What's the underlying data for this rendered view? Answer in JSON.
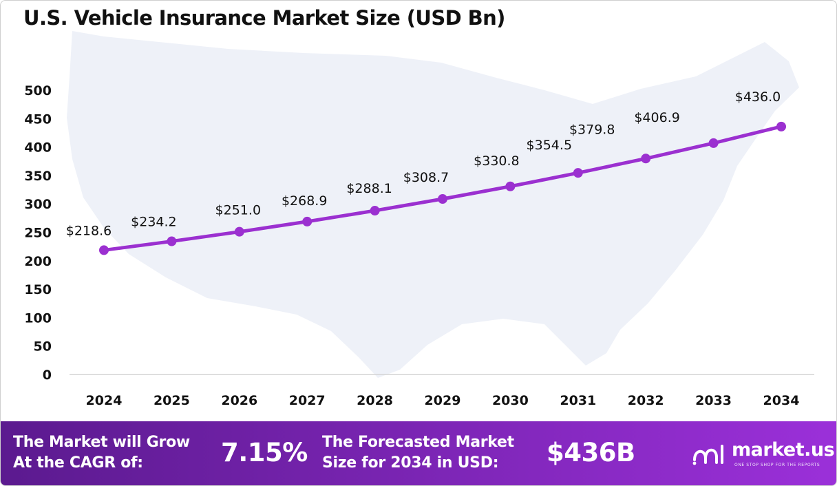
{
  "title": "U.S. Vehicle Insurance Market Size (USD Bn)",
  "colors": {
    "line": "#9b30d0",
    "marker": "#9b30d0",
    "map": "#eef1f8",
    "footer_start": "#5b1a8f",
    "footer_end": "#9b30d9"
  },
  "chart_data": {
    "type": "line",
    "title": "U.S. Vehicle Insurance Market Size (USD Bn)",
    "xlabel": "",
    "ylabel": "",
    "categories": [
      "2024",
      "2025",
      "2026",
      "2027",
      "2028",
      "2029",
      "2030",
      "2031",
      "2032",
      "2033",
      "2034"
    ],
    "values": [
      218.6,
      234.2,
      251.0,
      268.9,
      288.1,
      308.7,
      330.8,
      354.5,
      379.8,
      406.9,
      436.0
    ],
    "data_labels": [
      "$218.6",
      "$234.2",
      "$251.0",
      "$268.9",
      "$288.1",
      "$308.7",
      "$330.8",
      "$354.5",
      "$379.8",
      "$406.9",
      "$436.0"
    ],
    "yticks": [
      "0",
      "50",
      "100",
      "150",
      "200",
      "250",
      "300",
      "350",
      "400",
      "450",
      "500"
    ],
    "ylim": [
      0,
      500
    ],
    "grid": false,
    "legend": "none"
  },
  "footer": {
    "cagr_text_1": "The Market will Grow",
    "cagr_text_2": "At the CAGR of:",
    "cagr_value": "7.15%",
    "forecast_text_1": "The Forecasted Market",
    "forecast_text_2": "Size for 2034 in USD:",
    "forecast_value": "$436B"
  },
  "logo": {
    "name": "market.us",
    "tagline": "ONE STOP SHOP FOR THE REPORTS"
  }
}
